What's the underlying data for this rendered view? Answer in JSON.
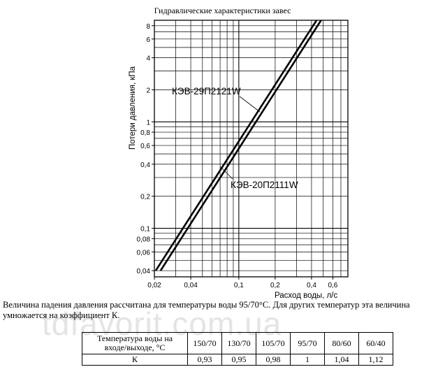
{
  "chart_data": {
    "type": "line",
    "title": "Гидравлические характеристики завес",
    "ylabel": "Потери давления, кПа",
    "xlabel": "Расход воды, л/с",
    "x_scale": "log",
    "y_scale": "log",
    "xlim": [
      0.02,
      0.8
    ],
    "ylim": [
      0.035,
      9
    ],
    "x_ticks": [
      "0,02",
      "0,04",
      "0,1",
      "0,2",
      "0,4",
      "0,6"
    ],
    "y_ticks": [
      "8",
      "6",
      "4",
      "2",
      "1",
      "0,8",
      "0,6",
      "0,4",
      "0,2",
      "0,1",
      "0,08",
      "0,06",
      "0,04"
    ],
    "grid": true,
    "series": [
      {
        "name": "КЭВ-29П2121W",
        "x": [
          0.0205,
          0.44
        ],
        "y": [
          0.04,
          9.0
        ]
      },
      {
        "name": "КЭВ-20П2111W",
        "x": [
          0.0225,
          0.48
        ],
        "y": [
          0.04,
          9.0
        ]
      }
    ]
  },
  "note": "Величина падения давления рассчитана для температуры воды 95/70°С. Для других температур эта величина умножается на коэффициент К.",
  "watermark": "tdfavorit.com.ua",
  "table": {
    "header_label": "Температура воды на входе/выходе, °С",
    "k_label": "К",
    "temps": [
      "150/70",
      "130/70",
      "105/70",
      "95/70",
      "80/60",
      "60/40"
    ],
    "k_values": [
      "0,93",
      "0,95",
      "0,98",
      "1",
      "1,04",
      "1,12"
    ]
  }
}
